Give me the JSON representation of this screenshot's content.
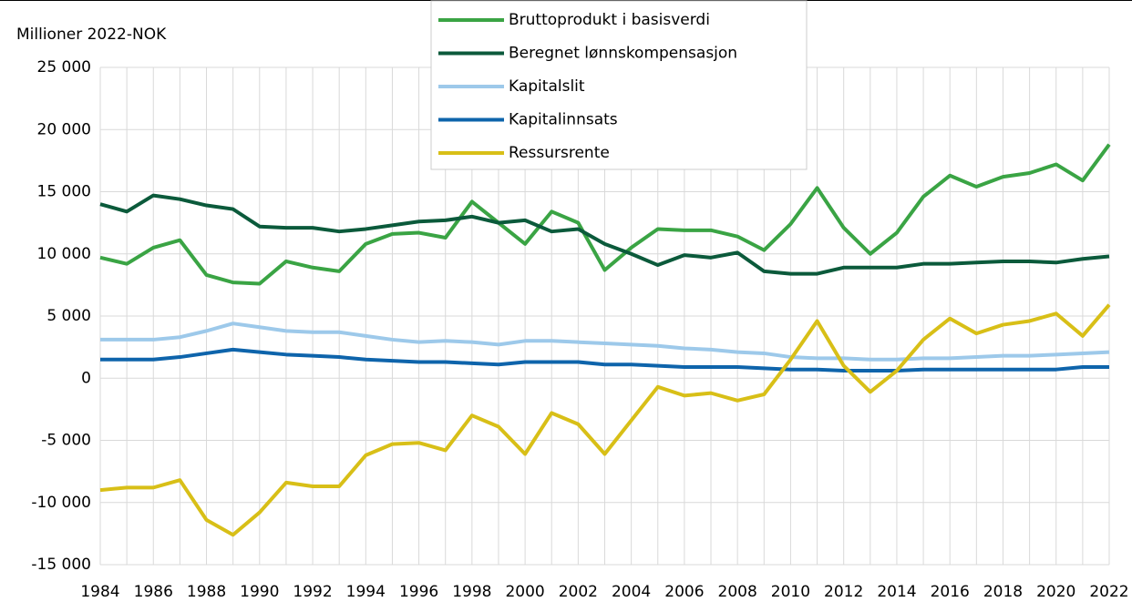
{
  "chart_data": {
    "type": "line",
    "y_axis_label": "Millioner 2022-NOK",
    "x": [
      1984,
      1985,
      1986,
      1987,
      1988,
      1989,
      1990,
      1991,
      1992,
      1993,
      1994,
      1995,
      1996,
      1997,
      1998,
      1999,
      2000,
      2001,
      2002,
      2003,
      2004,
      2005,
      2006,
      2007,
      2008,
      2009,
      2010,
      2011,
      2012,
      2013,
      2014,
      2015,
      2016,
      2017,
      2018,
      2019,
      2020,
      2021,
      2022
    ],
    "xlim": [
      1984,
      2022
    ],
    "xticks": [
      1984,
      1986,
      1988,
      1990,
      1992,
      1994,
      1996,
      1998,
      2000,
      2002,
      2004,
      2006,
      2008,
      2010,
      2012,
      2014,
      2016,
      2018,
      2020,
      2022
    ],
    "ylim": [
      -15000,
      25000
    ],
    "yticks": [
      {
        "value": -15000,
        "label": "-15 000"
      },
      {
        "value": -10000,
        "label": "-10 000"
      },
      {
        "value": -5000,
        "label": "-5 000"
      },
      0,
      {
        "value": 5000,
        "label": "5 000"
      },
      {
        "value": 10000,
        "label": "10 000"
      },
      {
        "value": 15000,
        "label": "15 000"
      },
      {
        "value": 20000,
        "label": "20 000"
      },
      {
        "value": 25000,
        "label": "25 000"
      }
    ],
    "grid": true,
    "legend": "top",
    "series": [
      {
        "name": "Bruttoprodukt i basisverdi",
        "color": "#3aa444",
        "values": [
          9700,
          9200,
          10500,
          11100,
          8300,
          7700,
          7600,
          9400,
          8900,
          8600,
          10800,
          11600,
          11700,
          11300,
          14200,
          12500,
          10800,
          13400,
          12500,
          8700,
          10500,
          12000,
          11900,
          11900,
          11400,
          10300,
          12400,
          15300,
          12100,
          10000,
          11700,
          14600,
          16300,
          15400,
          16200,
          16500,
          17200,
          15900,
          18800
        ]
      },
      {
        "name": "Beregnet lønnskompensasjon",
        "color": "#0b5a3b",
        "values": [
          14000,
          13400,
          14700,
          14400,
          13900,
          13600,
          12200,
          12100,
          12100,
          11800,
          12000,
          12300,
          12600,
          12700,
          13000,
          12500,
          12700,
          11800,
          12000,
          10800,
          10000,
          9100,
          9900,
          9700,
          10100,
          8600,
          8400,
          8400,
          8900,
          8900,
          8900,
          9200,
          9200,
          9300,
          9400,
          9400,
          9300,
          9600,
          9800
        ]
      },
      {
        "name": "Kapitalslit",
        "color": "#9dc9ea",
        "values": [
          3100,
          3100,
          3100,
          3300,
          3800,
          4400,
          4100,
          3800,
          3700,
          3700,
          3400,
          3100,
          2900,
          3000,
          2900,
          2700,
          3000,
          3000,
          2900,
          2800,
          2700,
          2600,
          2400,
          2300,
          2100,
          2000,
          1700,
          1600,
          1600,
          1500,
          1500,
          1600,
          1600,
          1700,
          1800,
          1800,
          1900,
          2000,
          2100
        ]
      },
      {
        "name": "Kapitalinnsats",
        "color": "#0e64ab",
        "values": [
          1500,
          1500,
          1500,
          1700,
          2000,
          2300,
          2100,
          1900,
          1800,
          1700,
          1500,
          1400,
          1300,
          1300,
          1200,
          1100,
          1300,
          1300,
          1300,
          1100,
          1100,
          1000,
          900,
          900,
          900,
          800,
          700,
          700,
          600,
          600,
          600,
          700,
          700,
          700,
          700,
          700,
          700,
          900,
          900
        ]
      },
      {
        "name": "Ressursrente",
        "color": "#d8bf17",
        "values": [
          -9000,
          -8800,
          -8800,
          -8200,
          -11400,
          -12600,
          -10800,
          -8400,
          -8700,
          -8700,
          -6200,
          -5300,
          -5200,
          -5800,
          -3000,
          -3900,
          -6100,
          -2800,
          -3700,
          -6100,
          -3400,
          -700,
          -1400,
          -1200,
          -1800,
          -1300,
          1500,
          4600,
          1000,
          -1100,
          600,
          3100,
          4800,
          3600,
          4300,
          4600,
          5200,
          3400,
          5900
        ]
      }
    ]
  }
}
